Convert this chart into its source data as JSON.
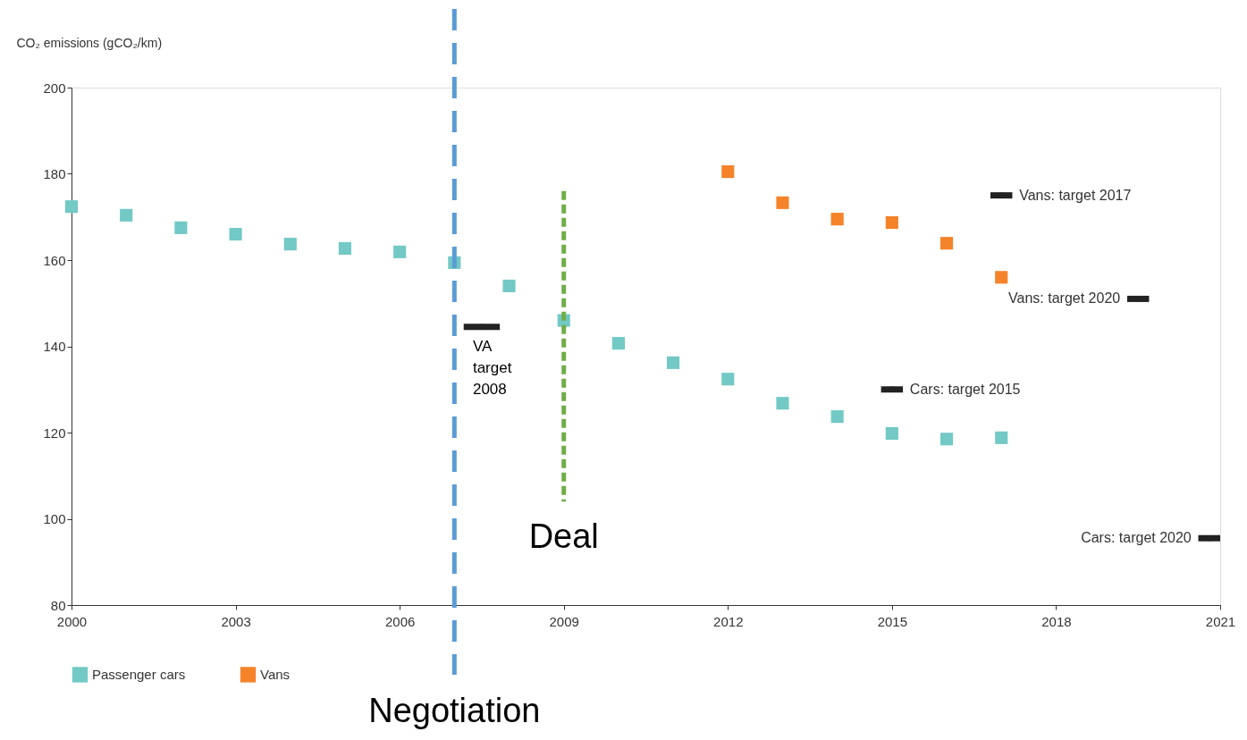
{
  "chart_data": {
    "type": "scatter",
    "ylabel": "CO₂ emissions  (gCO₂/km)",
    "marker": "square",
    "grid": false,
    "legend": "bottom left",
    "x": [
      2000,
      2001,
      2002,
      2003,
      2004,
      2005,
      2006,
      2007,
      2008,
      2009,
      2010,
      2011,
      2012,
      2013,
      2014,
      2015,
      2016,
      2017
    ],
    "series": [
      {
        "name": "Passenger cars",
        "color": "#72c9c5",
        "values": [
          172.4,
          170.4,
          167.5,
          166,
          163.7,
          162.7,
          161.9,
          159.4,
          154,
          146,
          140.7,
          136.2,
          132.4,
          126.8,
          123.7,
          119.8,
          118.5,
          118.8
        ]
      },
      {
        "name": "Vans",
        "color": "#f4832a",
        "x": [
          2012,
          2013,
          2014,
          2015,
          2016,
          2017
        ],
        "values": [
          180.5,
          173.3,
          169.5,
          168.7,
          163.9,
          156
        ]
      },
      {
        "color": "#222222",
        "marker": "square",
        "x": [
          2007.5,
          2017,
          2019.5,
          2015,
          2020.8
        ],
        "values": [
          144.5,
          175,
          151,
          130,
          95.5
        ],
        "xerrors": [
          0.33,
          0.2,
          0.2,
          0.2,
          0.2
        ]
      }
    ],
    "xlim": [
      2000,
      2021
    ],
    "xticks": [
      2000,
      2003,
      2006,
      2009,
      2012,
      2015,
      2018,
      2021
    ],
    "ylim": [
      80,
      200
    ],
    "yticks": [
      80,
      100,
      120,
      140,
      160,
      180,
      200
    ],
    "ref_lines": [
      {
        "axis": "x",
        "value": 2007,
        "label": "Negotiation",
        "color": "#5b9bd5",
        "line_style": "dashed"
      },
      {
        "axis": "x",
        "value": 2009,
        "label": "Deal",
        "color": "#70ad47",
        "line_style": "dashed"
      }
    ],
    "annotations": [
      "VA\ntarget\n2008",
      "Vans: target 2017",
      "Vans: target 2020",
      "Cars: target 2015",
      "Cars: target 2020"
    ]
  }
}
